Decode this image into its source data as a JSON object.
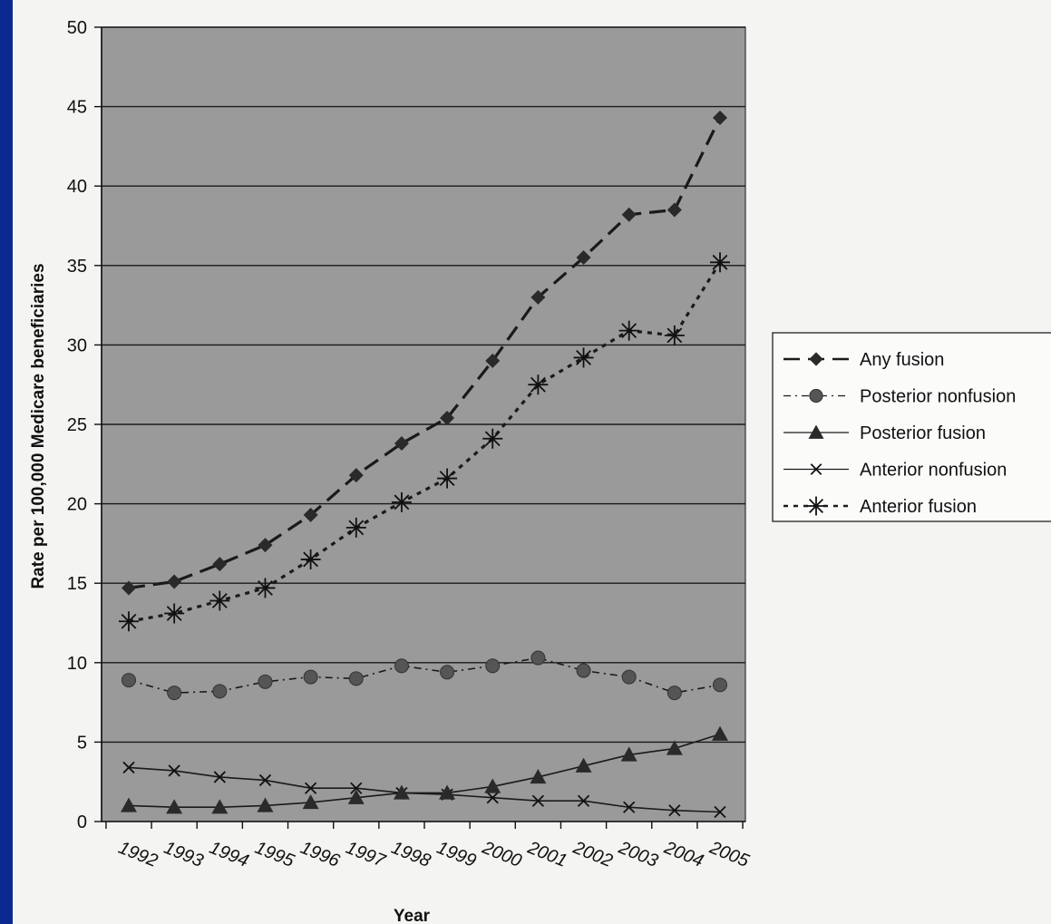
{
  "chart_data": {
    "type": "line",
    "title": "",
    "xlabel": "Year",
    "ylabel": "Rate per 100,000 Medicare beneficiaries",
    "ylim": [
      0,
      50
    ],
    "yticks": [
      0,
      5,
      10,
      15,
      20,
      25,
      30,
      35,
      40,
      45,
      50
    ],
    "categories": [
      "1992",
      "1993",
      "1994",
      "1995",
      "1996",
      "1997",
      "1998",
      "1999",
      "2000",
      "2001",
      "2002",
      "2003",
      "2004",
      "2005"
    ],
    "grid": "horizontal",
    "legend_position": "right",
    "plot_background": "#9a9a9a",
    "series": [
      {
        "name": "Any fusion",
        "marker": "diamond",
        "dash": "long-dash",
        "values": [
          14.7,
          15.1,
          16.2,
          17.4,
          19.3,
          21.8,
          23.8,
          25.4,
          29.0,
          33.0,
          35.5,
          38.2,
          38.5,
          44.3
        ]
      },
      {
        "name": "Posterior nonfusion",
        "marker": "circle",
        "dash": "dash-dot",
        "values": [
          8.9,
          8.1,
          8.2,
          8.8,
          9.1,
          9.0,
          9.8,
          9.4,
          9.8,
          10.3,
          9.5,
          9.1,
          8.1,
          8.6
        ]
      },
      {
        "name": "Posterior fusion",
        "marker": "triangle",
        "dash": "solid",
        "values": [
          1.0,
          0.9,
          0.9,
          1.0,
          1.2,
          1.5,
          1.8,
          1.8,
          2.2,
          2.8,
          3.5,
          4.2,
          4.6,
          5.5
        ]
      },
      {
        "name": "Anterior nonfusion",
        "marker": "x",
        "dash": "solid",
        "values": [
          3.4,
          3.2,
          2.8,
          2.6,
          2.1,
          2.1,
          1.8,
          1.7,
          1.5,
          1.3,
          1.3,
          0.9,
          0.7,
          0.6
        ]
      },
      {
        "name": "Anterior fusion",
        "marker": "asterisk",
        "dash": "dotted",
        "values": [
          12.6,
          13.1,
          13.9,
          14.7,
          16.5,
          18.5,
          20.1,
          21.6,
          24.1,
          27.5,
          29.2,
          30.9,
          30.6,
          35.2
        ]
      }
    ]
  }
}
